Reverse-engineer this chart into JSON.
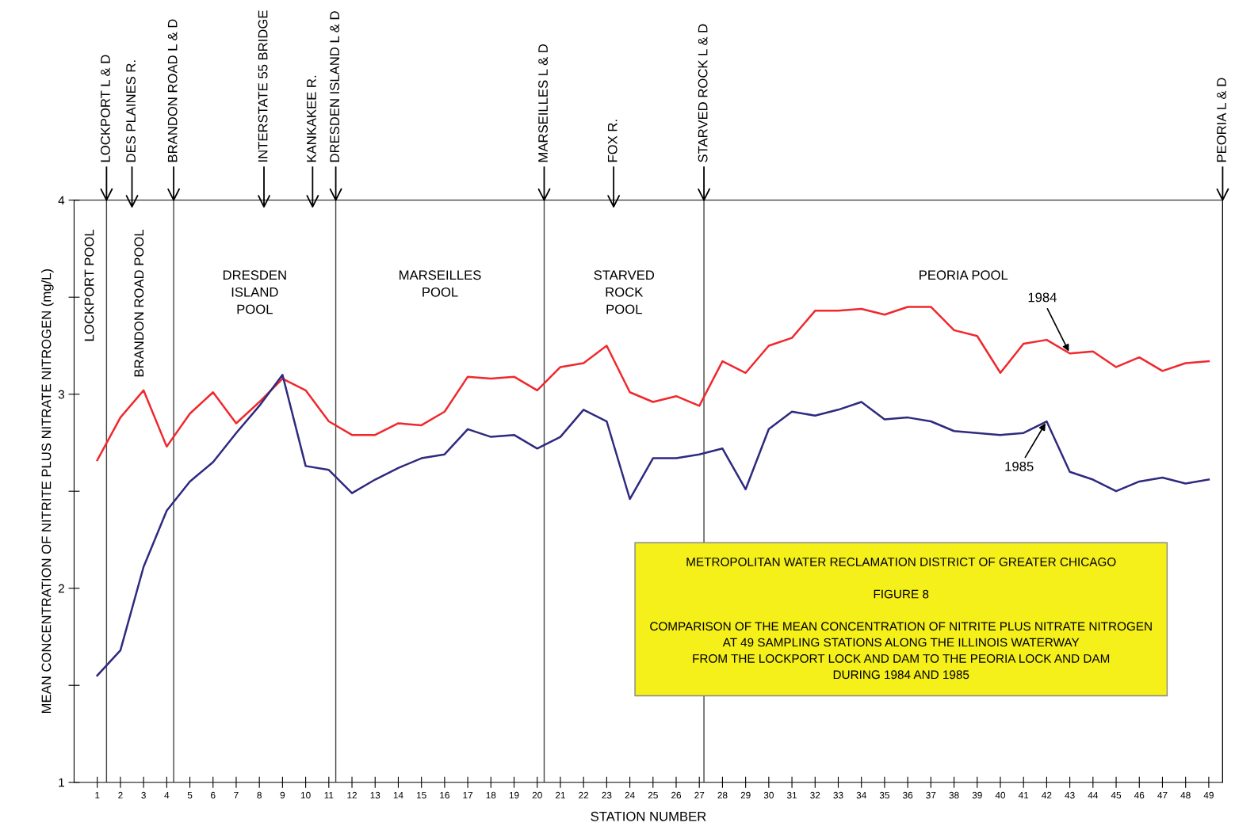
{
  "chart_data": {
    "type": "line",
    "xlabel": "STATION NUMBER",
    "ylabel": "MEAN CONCENTRATION OF NITRITE PLUS NITRATE NITROGEN (mg/L)",
    "xlim": [
      0,
      49.6
    ],
    "ylim": [
      1,
      4
    ],
    "yticks": [
      1,
      {
        "value": 1.5,
        "label": null
      },
      2,
      {
        "value": 2.5,
        "label": null
      },
      3,
      {
        "value": 3.5,
        "label": null
      },
      4
    ],
    "xticks": [
      1,
      2,
      3,
      4,
      5,
      6,
      7,
      8,
      9,
      10,
      11,
      12,
      13,
      14,
      15,
      16,
      17,
      18,
      19,
      20,
      21,
      22,
      23,
      24,
      25,
      26,
      27,
      28,
      29,
      30,
      31,
      32,
      33,
      34,
      35,
      36,
      37,
      38,
      39,
      40,
      41,
      42,
      43,
      44,
      45,
      46,
      47,
      48,
      49
    ],
    "x": [
      1,
      2,
      3,
      4,
      5,
      6,
      7,
      8,
      9,
      10,
      11,
      12,
      13,
      14,
      15,
      16,
      17,
      18,
      19,
      20,
      21,
      22,
      23,
      24,
      25,
      26,
      27,
      28,
      29,
      30,
      31,
      32,
      33,
      34,
      35,
      36,
      37,
      38,
      39,
      40,
      41,
      42,
      43,
      44,
      45,
      46,
      47,
      48,
      49
    ],
    "series": [
      {
        "name": "1984",
        "color": "#f0282d",
        "values": [
          2.66,
          2.88,
          3.02,
          2.73,
          2.9,
          3.01,
          2.85,
          2.96,
          3.08,
          3.02,
          2.86,
          2.79,
          2.79,
          2.85,
          2.84,
          2.91,
          3.09,
          3.08,
          3.09,
          3.02,
          3.14,
          3.16,
          3.25,
          3.01,
          2.96,
          2.99,
          2.94,
          3.17,
          3.11,
          3.25,
          3.29,
          3.43,
          3.43,
          3.44,
          3.41,
          3.45,
          3.45,
          3.33,
          3.3,
          3.11,
          3.26,
          3.28,
          3.21,
          3.22,
          3.14,
          3.19,
          3.12,
          3.16,
          3.17
        ]
      },
      {
        "name": "1985",
        "color": "#2e2a7e",
        "values": [
          1.55,
          1.68,
          2.11,
          2.4,
          2.55,
          2.65,
          2.8,
          2.94,
          3.1,
          2.63,
          2.61,
          2.49,
          2.56,
          2.62,
          2.67,
          2.69,
          2.82,
          2.78,
          2.79,
          2.72,
          2.78,
          2.92,
          2.86,
          2.46,
          2.67,
          2.67,
          2.69,
          2.72,
          2.51,
          2.82,
          2.91,
          2.89,
          2.92,
          2.96,
          2.87,
          2.88,
          2.86,
          2.81,
          2.8,
          2.79,
          2.8,
          2.86,
          2.6,
          2.56,
          2.5,
          2.55,
          2.57,
          2.54,
          2.56
        ]
      }
    ],
    "ref_lines": [
      {
        "axis": "x",
        "value": 1.4,
        "label": "LOCKPORT L & D",
        "color": "#444444"
      },
      {
        "axis": "x",
        "value": 2.5,
        "label": "DES PLAINES R."
      },
      {
        "axis": "x",
        "value": 4.3,
        "label": "BRANDON ROAD L & D",
        "color": "#444444"
      },
      {
        "axis": "x",
        "value": 8.2,
        "label": "INTERSTATE 55 BRIDGE"
      },
      {
        "axis": "x",
        "value": 10.3,
        "label": "KANKAKEE R."
      },
      {
        "axis": "x",
        "value": 11.3,
        "label": "DRESDEN ISLAND L & D",
        "color": "#444444"
      },
      {
        "axis": "x",
        "value": 20.3,
        "label": "MARSEILLES L & D",
        "color": "#444444"
      },
      {
        "axis": "x",
        "value": 23.3,
        "label": "FOX R."
      },
      {
        "axis": "x",
        "value": 27.2,
        "label": "STARVED ROCK L & D",
        "color": "#444444"
      },
      {
        "axis": "x",
        "value": 49.6,
        "label": "PEORIA L & D",
        "color": "#444444"
      }
    ],
    "annotations": [
      "LOCKPORT POOL",
      "BRANDON ROAD POOL",
      "DRESDEN\nISLAND\nPOOL",
      "MARSEILLES\nPOOL",
      "STARVED\nROCK\nPOOL",
      "PEORIA POOL",
      "METROPOLITAN WATER RECLAMATION DISTRICT OF GREATER CHICAGO\n\nFIGURE 8\n\nCOMPARISON OF THE MEAN CONCENTRATION OF NITRITE PLUS NITRATE NITROGEN\nAT 49 SAMPLING STATIONS ALONG THE ILLINOIS WATERWAY\nFROM THE LOCKPORT LOCK AND DAM TO THE PEORIA LOCK AND DAM\nDURING 1984 AND 1985"
    ],
    "grid": false,
    "legend": false
  }
}
